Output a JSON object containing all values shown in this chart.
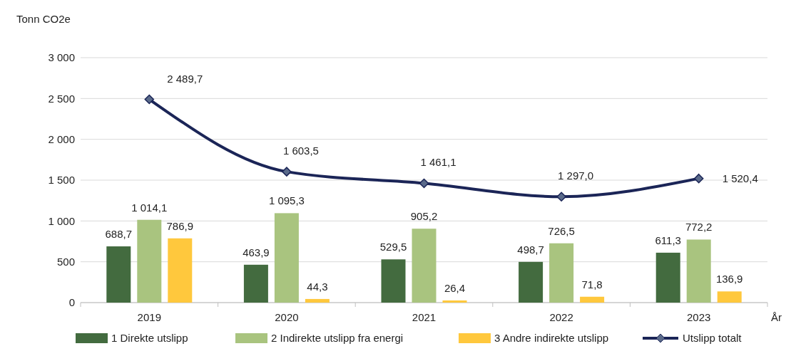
{
  "chart_data": {
    "type": "bar",
    "ylabel": "Tonn CO2e",
    "xlabel": "År",
    "categories": [
      "2019",
      "2020",
      "2021",
      "2022",
      "2023"
    ],
    "ylim": [
      0,
      3000
    ],
    "yticks": [
      {
        "value": 0,
        "label": "0"
      },
      {
        "value": 500,
        "label": "500"
      },
      {
        "value": 1000,
        "label": "1 000"
      },
      {
        "value": 1500,
        "label": "1 500"
      },
      {
        "value": 2000,
        "label": "2 000"
      },
      {
        "value": 2500,
        "label": "2 500"
      },
      {
        "value": 3000,
        "label": "3 000"
      }
    ],
    "grid": "y",
    "legend": "bottom",
    "marker": "diamond",
    "line_style": "solid",
    "series": [
      {
        "name": "1 Direkte utslipp",
        "color": "#436b3f",
        "values": [
          688.7,
          463.9,
          529.5,
          498.7,
          611.3
        ],
        "value_labels": [
          "688,7",
          "463,9",
          "529,5",
          "498,7",
          "611,3"
        ]
      },
      {
        "name": "2 Indirekte utslipp fra energi",
        "color": "#a9c47f",
        "values": [
          1014.1,
          1095.3,
          905.2,
          726.5,
          772.2
        ],
        "value_labels": [
          "1 014,1",
          "1 095,3",
          "905,2",
          "726,5",
          "772,2"
        ]
      },
      {
        "name": "3 Andre indirekte utslipp",
        "color": "#ffc83d",
        "values": [
          786.9,
          44.3,
          26.4,
          71.8,
          136.9
        ],
        "value_labels": [
          "786,9",
          "44,3",
          "26,4",
          "71,8",
          "136,9"
        ]
      },
      {
        "name": "Utslipp totalt",
        "type": "line",
        "color": "#1b2557",
        "values": [
          2489.7,
          1603.5,
          1461.1,
          1297.0,
          1520.4
        ],
        "value_labels": [
          "2 489,7",
          "1 603,5",
          "1 461,1",
          "1 297,0",
          "1 520,4"
        ]
      }
    ]
  }
}
